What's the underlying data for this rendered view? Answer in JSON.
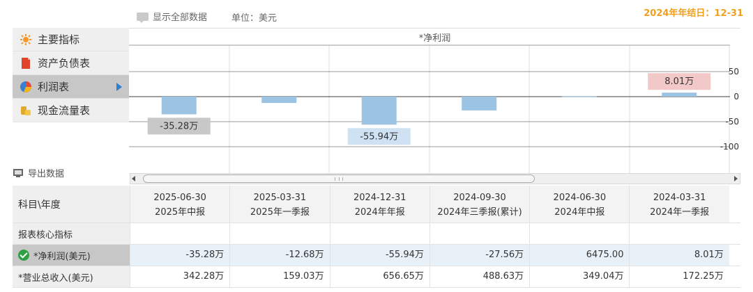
{
  "topbar": {
    "show_all_label": "显示全部数据",
    "unit_label": "单位：美元",
    "year_end_label": "2024年年结日：12-31"
  },
  "sidebar": {
    "items": [
      {
        "label": "主要指标",
        "icon": "sun-icon",
        "active": false
      },
      {
        "label": "资产负债表",
        "icon": "document-icon",
        "active": false
      },
      {
        "label": "利润表",
        "icon": "pie-chart-icon",
        "active": true
      },
      {
        "label": "现金流量表",
        "icon": "coins-icon",
        "active": false
      }
    ],
    "export_label": "导出数据"
  },
  "chart_data": {
    "type": "bar",
    "title": "*净利润",
    "categories": [
      "2025-06-30",
      "2025-03-31",
      "2024-12-31",
      "2024-09-30",
      "2024-06-30",
      "2024-03-31"
    ],
    "values": [
      -35.28,
      -12.68,
      -55.94,
      -27.56,
      0.6475,
      8.01
    ],
    "value_unit": "万",
    "y_ticks": [
      50,
      0,
      -50,
      -100
    ],
    "ylim": [
      -150,
      100
    ],
    "data_labels": [
      "-35.28万",
      "",
      "-55.94万",
      "",
      "",
      "8.01万"
    ],
    "colors": {
      "bar": "#9cc3e2",
      "neg_label_bg": "#c8c8c8",
      "neg_label_bg_2": "#cfe2f3",
      "pos_label_bg": "#f2c8c8"
    }
  },
  "table": {
    "header_label": "科目\\年度",
    "columns": [
      {
        "date": "2025-06-30",
        "report": "2025年中报"
      },
      {
        "date": "2025-03-31",
        "report": "2025年一季报"
      },
      {
        "date": "2024-12-31",
        "report": "2024年年报"
      },
      {
        "date": "2024-09-30",
        "report": "2024年三季报(累计)"
      },
      {
        "date": "2024-06-30",
        "report": "2024年中报"
      },
      {
        "date": "2024-03-31",
        "report": "2024年一季报"
      }
    ],
    "section_label": "报表核心指标",
    "rows": [
      {
        "label": "*净利润(美元)",
        "values": [
          "-35.28万",
          "-12.68万",
          "-55.94万",
          "-27.56万",
          "6475.00",
          "8.01万"
        ]
      },
      {
        "label": "*营业总收入(美元)",
        "values": [
          "342.28万",
          "159.03万",
          "656.65万",
          "488.63万",
          "349.04万",
          "172.25万"
        ]
      }
    ]
  }
}
